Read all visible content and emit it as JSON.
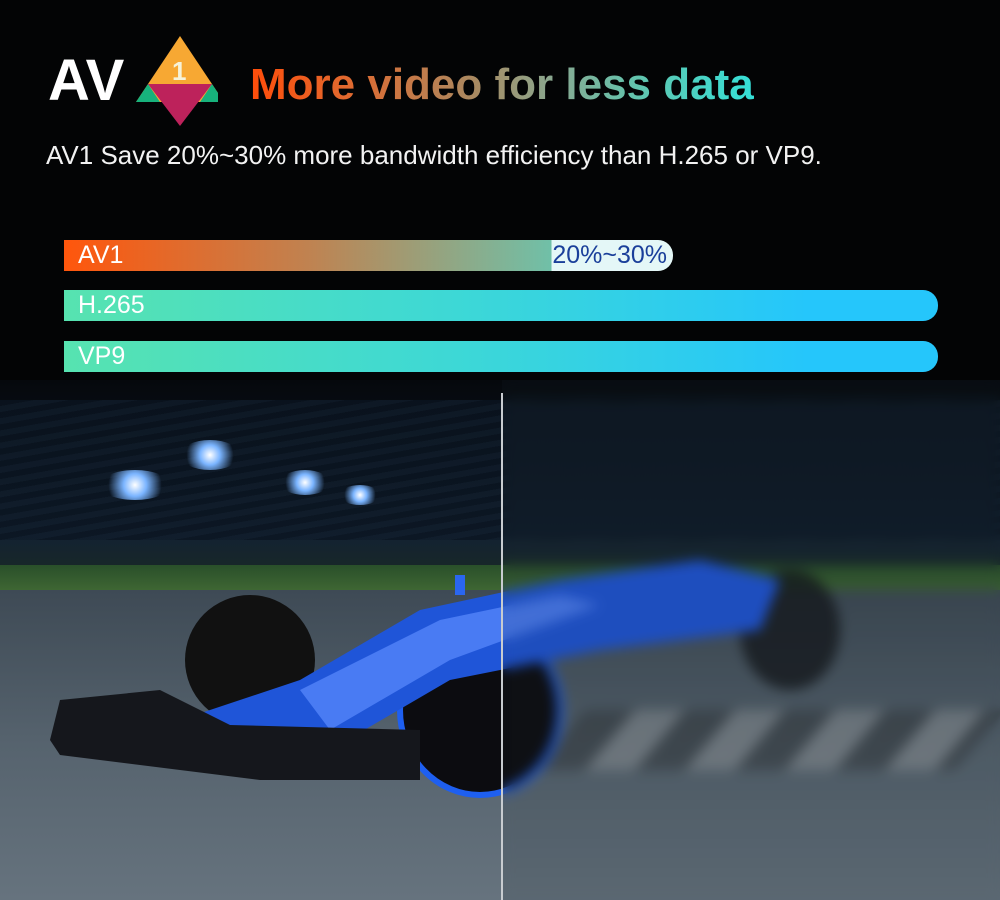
{
  "logo": {
    "text": "AV1",
    "colors": {
      "orange": "#f7a833",
      "green": "#17b27c",
      "magenta": "#bd225b"
    }
  },
  "headline": "More video for less data",
  "subtitle": "AV1 Save 20%~30% more bandwidth efficiency than H.265 or VP9.",
  "bars": [
    {
      "label": "AV1",
      "badge": "20%~30%",
      "relative_level": 0.7
    },
    {
      "label": "H.265",
      "relative_level": 1.0
    },
    {
      "label": "VP9",
      "relative_level": 1.0
    }
  ],
  "colors": {
    "av1_start": "#ff560c",
    "bar_start": "#57e3b0",
    "bar_end": "#25c6fb",
    "badge_text": "#1a3f9a"
  }
}
